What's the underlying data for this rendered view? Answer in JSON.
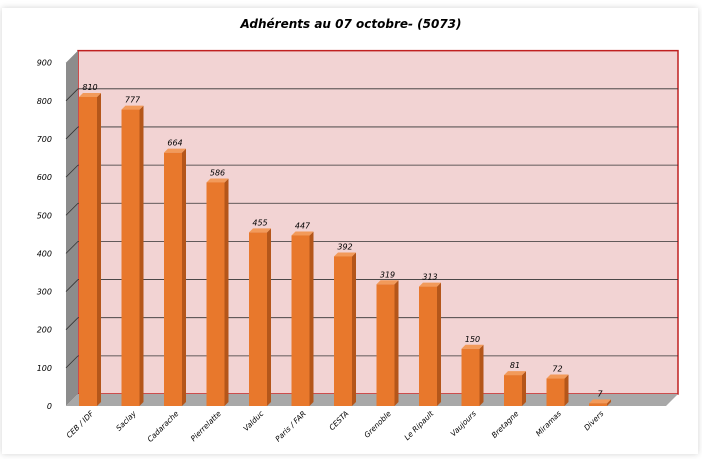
{
  "chart_data": {
    "type": "bar",
    "title": "Adhérents au 07 octobre- (5073)",
    "categories": [
      "CEB / IDF",
      "Saclay",
      "Cadarache",
      "Pierrelatte",
      "Valduc",
      "Paris / FAR",
      "CESTA",
      "Grenoble",
      "Le Ripault",
      "Vaujours",
      "Bretagne",
      "Miramas",
      "Divers"
    ],
    "values": [
      810,
      777,
      664,
      586,
      455,
      447,
      392,
      319,
      313,
      150,
      81,
      72,
      7
    ],
    "value_labels": [
      "810",
      "777",
      "664",
      "586",
      "455",
      "447",
      "392",
      "319",
      "313",
      "150",
      "81",
      "72",
      "7"
    ],
    "y_ticks": [
      "0",
      "100",
      "200",
      "300",
      "400",
      "500",
      "600",
      "700",
      "800",
      "900"
    ],
    "ylim": [
      0,
      900
    ],
    "grid": true,
    "legend": "none",
    "colors": {
      "bar_front": "#e8782c",
      "bar_side": "#b4561a",
      "bar_top": "#f29a5a",
      "plot_back": "#f2d3d3",
      "plot_border": "#c02020",
      "wall": "#8c8c8c",
      "floor": "#a8a8a8",
      "grid": "#333333"
    }
  }
}
